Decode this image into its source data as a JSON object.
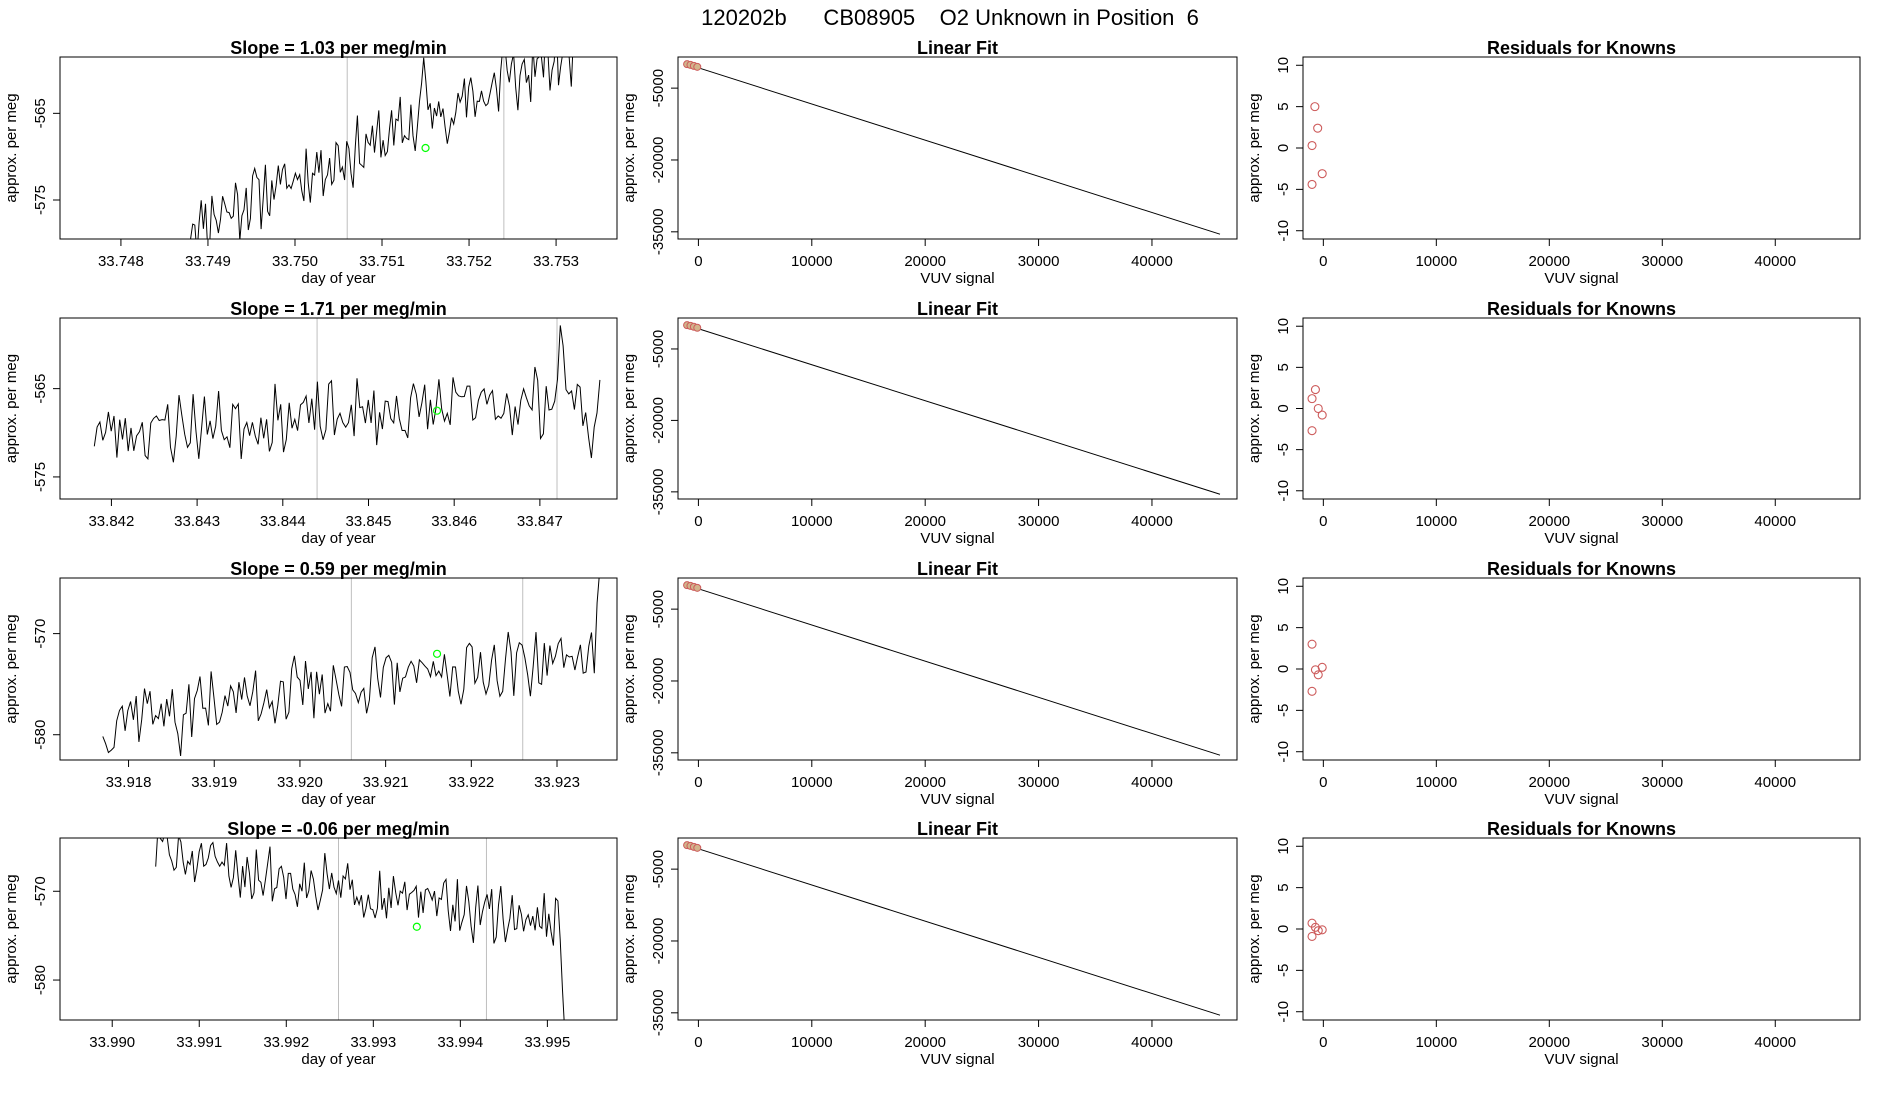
{
  "figure": {
    "title": "120202b      CB08905    O2 Unknown in Position  6"
  },
  "colors": {
    "series": "#000000",
    "vline": "#bebebe",
    "marker": "#00ff00",
    "known_point": "#cd5c5c",
    "fit_point": "#d2b48c"
  },
  "chart_data": [
    {
      "type": "line",
      "panel": "slope",
      "row": 0,
      "title": "Slope =  1.03  per meg/min",
      "xlabel": "day of year",
      "ylabel": "approx. per meg",
      "xlim": [
        33.7473,
        33.7537
      ],
      "ylim": [
        -579.5,
        -558.5
      ],
      "xticks": [
        33.748,
        33.749,
        33.75,
        33.751,
        33.752,
        33.753
      ],
      "xtick_labels": [
        "33.748",
        "33.749",
        "33.750",
        "33.751",
        "33.752",
        "33.753"
      ],
      "yticks": [
        -565,
        -575
      ],
      "ytick_labels": [
        "-565",
        "-575"
      ],
      "vlines": [
        33.7506,
        33.7524
      ],
      "marker": {
        "x": 33.7515,
        "y": -569.0
      },
      "series": {
        "x_start": 33.7488,
        "x_end": 33.7532,
        "start": -578.0,
        "end": -558.0,
        "amp": 3.0,
        "seed": 11,
        "peaks": [
          [
            33.75148,
            -558.5
          ],
          [
            33.7524,
            -556.5
          ],
          [
            33.7531,
            -556.0
          ]
        ]
      }
    },
    {
      "type": "line",
      "panel": "slope",
      "row": 1,
      "title": "Slope =  1.71  per meg/min",
      "xlabel": "day of year",
      "ylabel": "approx. per meg",
      "xlim": [
        33.8414,
        33.8479
      ],
      "ylim": [
        -577.5,
        -557.0
      ],
      "xticks": [
        33.842,
        33.843,
        33.844,
        33.845,
        33.846,
        33.847
      ],
      "xtick_labels": [
        "33.842",
        "33.843",
        "33.844",
        "33.845",
        "33.846",
        "33.847"
      ],
      "yticks": [
        -565,
        -575
      ],
      "ytick_labels": [
        "-565",
        "-575"
      ],
      "vlines": [
        33.8444,
        33.8472
      ],
      "marker": {
        "x": 33.8458,
        "y": -567.5
      },
      "series": {
        "x_start": 33.8418,
        "x_end": 33.8477,
        "start": -570.0,
        "end": -566.0,
        "amp": 3.0,
        "seed": 23,
        "peaks": [
          [
            33.84725,
            -557.0
          ],
          [
            33.8476,
            -573.0
          ]
        ]
      }
    },
    {
      "type": "line",
      "panel": "slope",
      "row": 2,
      "title": "Slope =  0.59  per meg/min",
      "xlabel": "day of year",
      "ylabel": "approx. per meg",
      "xlim": [
        33.9172,
        33.9237
      ],
      "ylim": [
        -582.5,
        -564.5
      ],
      "xticks": [
        33.918,
        33.919,
        33.92,
        33.921,
        33.922,
        33.923
      ],
      "xtick_labels": [
        "33.918",
        "33.919",
        "33.920",
        "33.921",
        "33.922",
        "33.923"
      ],
      "yticks": [
        -570,
        -580
      ],
      "ytick_labels": [
        "-570",
        "-580"
      ],
      "vlines": [
        33.9206,
        33.9226
      ],
      "marker": {
        "x": 33.9216,
        "y": -572.0
      },
      "series": {
        "x_start": 33.9177,
        "x_end": 33.9235,
        "start": -578.0,
        "end": -572.0,
        "amp": 2.5,
        "seed": 37,
        "peaks": [
          [
            33.91775,
            -582.5
          ],
          [
            33.9186,
            -582.5
          ],
          [
            33.9235,
            -563.5
          ]
        ]
      }
    },
    {
      "type": "line",
      "panel": "slope",
      "row": 3,
      "title": "Slope =  -0.06  per meg/min",
      "xlabel": "day of year",
      "ylabel": "approx. per meg",
      "xlim": [
        33.9894,
        33.9958
      ],
      "ylim": [
        -584.5,
        -564.0
      ],
      "xticks": [
        33.99,
        33.991,
        33.992,
        33.993,
        33.994,
        33.995
      ],
      "xtick_labels": [
        "33.990",
        "33.991",
        "33.992",
        "33.993",
        "33.994",
        "33.995"
      ],
      "yticks": [
        -570,
        -580
      ],
      "ytick_labels": [
        "-570",
        "-580"
      ],
      "vlines": [
        33.9926,
        33.9943
      ],
      "marker": {
        "x": 33.9935,
        "y": -574.0
      },
      "series": {
        "x_start": 33.9905,
        "x_end": 33.9952,
        "start": -566.0,
        "end": -574.0,
        "amp": 2.5,
        "seed": 51,
        "peaks": [
          [
            33.9906,
            -563.0
          ],
          [
            33.9952,
            -586.0
          ]
        ]
      }
    },
    {
      "type": "line",
      "panel": "fit",
      "row": 0,
      "title": "Linear Fit",
      "xlabel": "VUV signal",
      "ylabel": "approx. per meg",
      "xlim": [
        -1800,
        47500
      ],
      "ylim": [
        -36500,
        1500
      ],
      "xticks": [
        0,
        10000,
        20000,
        30000,
        40000
      ],
      "xtick_labels": [
        "0",
        "10000",
        "20000",
        "30000",
        "40000"
      ],
      "yticks": [
        -5000,
        -20000,
        -35000
      ],
      "ytick_labels": [
        "-5000",
        "-20000",
        "-35000"
      ],
      "line": {
        "x": [
          -1000,
          46000
        ],
        "y": [
          0,
          -35500
        ]
      },
      "points_known": [
        [
          -1000,
          0
        ],
        [
          -700,
          -150
        ],
        [
          -400,
          -350
        ],
        [
          -100,
          -550
        ]
      ]
    },
    {
      "type": "line",
      "panel": "fit",
      "row": 1,
      "title": "Linear Fit",
      "xlabel": "VUV signal",
      "ylabel": "approx. per meg",
      "xlim": [
        -1800,
        47500
      ],
      "ylim": [
        -36500,
        1500
      ],
      "xticks": [
        0,
        10000,
        20000,
        30000,
        40000
      ],
      "xtick_labels": [
        "0",
        "10000",
        "20000",
        "30000",
        "40000"
      ],
      "yticks": [
        -5000,
        -20000,
        -35000
      ],
      "ytick_labels": [
        "-5000",
        "-20000",
        "-35000"
      ],
      "line": {
        "x": [
          -1000,
          46000
        ],
        "y": [
          0,
          -35500
        ]
      },
      "points_known": [
        [
          -1000,
          0
        ],
        [
          -700,
          -150
        ],
        [
          -400,
          -350
        ],
        [
          -100,
          -550
        ]
      ]
    },
    {
      "type": "line",
      "panel": "fit",
      "row": 2,
      "title": "Linear Fit",
      "xlabel": "VUV signal",
      "ylabel": "approx. per meg",
      "xlim": [
        -1800,
        47500
      ],
      "ylim": [
        -36500,
        1500
      ],
      "xticks": [
        0,
        10000,
        20000,
        30000,
        40000
      ],
      "xtick_labels": [
        "0",
        "10000",
        "20000",
        "30000",
        "40000"
      ],
      "yticks": [
        -5000,
        -20000,
        -35000
      ],
      "ytick_labels": [
        "-5000",
        "-20000",
        "-35000"
      ],
      "line": {
        "x": [
          -1000,
          46000
        ],
        "y": [
          0,
          -35500
        ]
      },
      "points_known": [
        [
          -1000,
          0
        ],
        [
          -700,
          -150
        ],
        [
          -400,
          -350
        ],
        [
          -100,
          -550
        ]
      ]
    },
    {
      "type": "line",
      "panel": "fit",
      "row": 3,
      "title": "Linear Fit",
      "xlabel": "VUV signal",
      "ylabel": "approx. per meg",
      "xlim": [
        -1800,
        47500
      ],
      "ylim": [
        -36500,
        1500
      ],
      "xticks": [
        0,
        10000,
        20000,
        30000,
        40000
      ],
      "xtick_labels": [
        "0",
        "10000",
        "20000",
        "30000",
        "40000"
      ],
      "yticks": [
        -5000,
        -20000,
        -35000
      ],
      "ytick_labels": [
        "-5000",
        "-20000",
        "-35000"
      ],
      "line": {
        "x": [
          -1000,
          46000
        ],
        "y": [
          0,
          -35500
        ]
      },
      "points_known": [
        [
          -1000,
          0
        ],
        [
          -700,
          -150
        ],
        [
          -400,
          -350
        ],
        [
          -100,
          -550
        ]
      ]
    },
    {
      "type": "scatter",
      "panel": "resid",
      "row": 0,
      "title": "Residuals for Knowns",
      "xlabel": "VUV signal",
      "ylabel": "approx. per meg",
      "xlim": [
        -1800,
        47500
      ],
      "ylim": [
        -11,
        11
      ],
      "xticks": [
        0,
        10000,
        20000,
        30000,
        40000
      ],
      "xtick_labels": [
        "0",
        "10000",
        "20000",
        "30000",
        "40000"
      ],
      "yticks": [
        10,
        5,
        0,
        -5,
        -10
      ],
      "ytick_labels": [
        "10",
        "5",
        "0",
        "-5",
        "-10"
      ],
      "points": [
        [
          -1000,
          -4.4
        ],
        [
          -1000,
          0.3
        ],
        [
          -750,
          5.0
        ],
        [
          -500,
          2.4
        ],
        [
          -100,
          -3.1
        ]
      ]
    },
    {
      "type": "scatter",
      "panel": "resid",
      "row": 1,
      "title": "Residuals for Knowns",
      "xlabel": "VUV signal",
      "ylabel": "approx. per meg",
      "xlim": [
        -1800,
        47500
      ],
      "ylim": [
        -11,
        11
      ],
      "xticks": [
        0,
        10000,
        20000,
        30000,
        40000
      ],
      "xtick_labels": [
        "0",
        "10000",
        "20000",
        "30000",
        "40000"
      ],
      "yticks": [
        10,
        5,
        0,
        -5,
        -10
      ],
      "ytick_labels": [
        "10",
        "5",
        "0",
        "-5",
        "-10"
      ],
      "points": [
        [
          -1000,
          -2.7
        ],
        [
          -1000,
          1.2
        ],
        [
          -700,
          2.3
        ],
        [
          -450,
          0.0
        ],
        [
          -100,
          -0.8
        ]
      ]
    },
    {
      "type": "scatter",
      "panel": "resid",
      "row": 2,
      "title": "Residuals for Knowns",
      "xlabel": "VUV signal",
      "ylabel": "approx. per meg",
      "xlim": [
        -1800,
        47500
      ],
      "ylim": [
        -11,
        11
      ],
      "xticks": [
        0,
        10000,
        20000,
        30000,
        40000
      ],
      "xtick_labels": [
        "0",
        "10000",
        "20000",
        "30000",
        "40000"
      ],
      "yticks": [
        10,
        5,
        0,
        -5,
        -10
      ],
      "ytick_labels": [
        "10",
        "5",
        "0",
        "-5",
        "-10"
      ],
      "points": [
        [
          -1000,
          -2.7
        ],
        [
          -1000,
          3.0
        ],
        [
          -700,
          -0.1
        ],
        [
          -450,
          -0.7
        ],
        [
          -100,
          0.2
        ]
      ]
    },
    {
      "type": "scatter",
      "panel": "resid",
      "row": 3,
      "title": "Residuals for Knowns",
      "xlabel": "VUV signal",
      "ylabel": "approx. per meg",
      "xlim": [
        -1800,
        47500
      ],
      "ylim": [
        -11,
        11
      ],
      "xticks": [
        0,
        10000,
        20000,
        30000,
        40000
      ],
      "xtick_labels": [
        "0",
        "10000",
        "20000",
        "30000",
        "40000"
      ],
      "yticks": [
        10,
        5,
        0,
        -5,
        -10
      ],
      "ytick_labels": [
        "10",
        "5",
        "0",
        "-5",
        "-10"
      ],
      "points": [
        [
          -1000,
          -0.9
        ],
        [
          -1000,
          0.7
        ],
        [
          -700,
          0.2
        ],
        [
          -450,
          -0.2
        ],
        [
          -100,
          -0.1
        ]
      ]
    }
  ]
}
